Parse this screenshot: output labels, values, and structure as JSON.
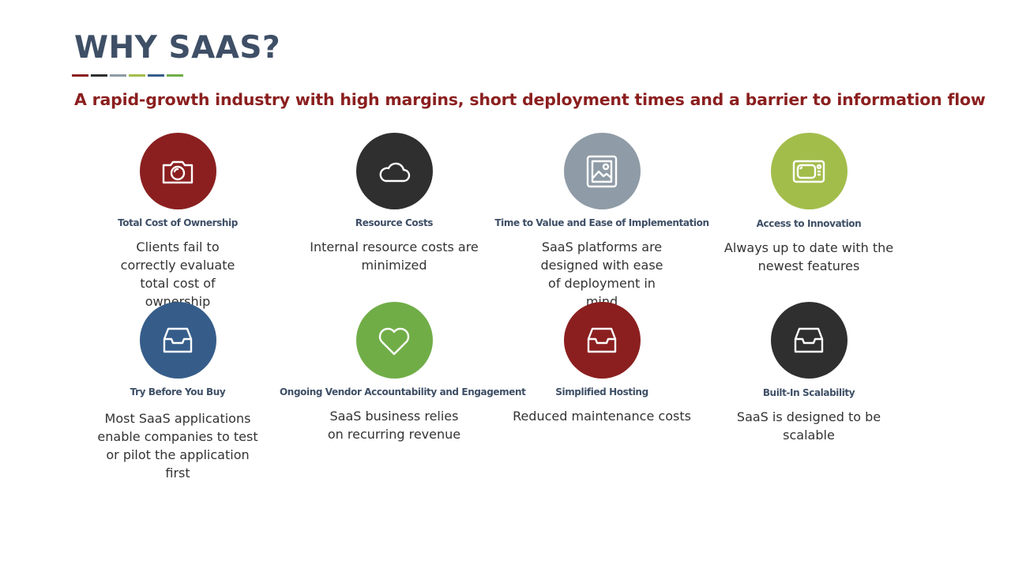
{
  "slide": {
    "title": "WHY SAAS?",
    "subtitle": "A rapid-growth industry with high margins, short deployment times and a barrier to information flow",
    "accent_colors": [
      "#8b1f1f",
      "#2f2f2f",
      "#8f9ba6",
      "#a3bd4b",
      "#365d8a",
      "#70ad47"
    ]
  },
  "cards": [
    {
      "title": "Total Cost of Ownership",
      "desc": "Clients fail to correctly evaluate total cost of ownership",
      "icon": "camera-icon",
      "color": "#8b1f1f"
    },
    {
      "title": "Resource Costs",
      "desc": "Internal resource costs are minimized",
      "icon": "cloud-icon",
      "color": "#2f2f2f"
    },
    {
      "title": "Time to Value and Ease of Implementation",
      "desc": "SaaS platforms are designed with ease of deployment in mind",
      "icon": "image-icon",
      "color": "#8f9ba6"
    },
    {
      "title": "Access to Innovation",
      "desc": "Always up to date with the newest features",
      "icon": "tv-icon",
      "color": "#a3bd4b"
    },
    {
      "title": "Try Before You Buy",
      "desc": "Most SaaS applications enable companies to test or pilot the application first",
      "icon": "inbox-icon",
      "color": "#365d8a"
    },
    {
      "title": "Ongoing Vendor Accountability and Engagement",
      "desc": "SaaS business relies on recurring revenue",
      "icon": "heart-icon",
      "color": "#70ad47"
    },
    {
      "title": "Simplified Hosting",
      "desc": "Reduced maintenance costs",
      "icon": "inbox-icon",
      "color": "#8b1f1f"
    },
    {
      "title": "Built-In Scalability",
      "desc": "SaaS is designed to be scalable",
      "icon": "inbox-icon",
      "color": "#2f2f2f"
    }
  ]
}
